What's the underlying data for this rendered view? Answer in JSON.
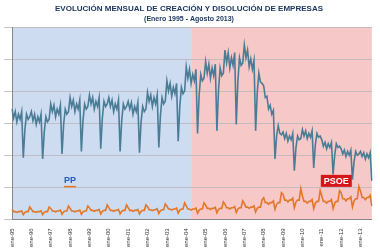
{
  "chart_data": {
    "type": "line",
    "title": "EVOLUCIÓN MENSUAL DE CREACIÓN Y DISOLUCIÓN DE EMPRESAS",
    "subtitle": "(Enero 1995 - Agosto 2013)",
    "categories": [
      "ene-95",
      null,
      null,
      null,
      null,
      null,
      null,
      null,
      null,
      null,
      null,
      null,
      "ene-96",
      null,
      null,
      null,
      null,
      null,
      null,
      null,
      null,
      null,
      null,
      null,
      "ene-97",
      null,
      null,
      null,
      null,
      null,
      null,
      null,
      null,
      null,
      null,
      null,
      "ene-98",
      null,
      null,
      null,
      null,
      null,
      null,
      null,
      null,
      null,
      null,
      null,
      "ene-99",
      null,
      null,
      null,
      null,
      null,
      null,
      null,
      null,
      null,
      null,
      null,
      "ene-00",
      null,
      null,
      null,
      null,
      null,
      null,
      null,
      null,
      null,
      null,
      null,
      "ene-01",
      null,
      null,
      null,
      null,
      null,
      null,
      null,
      null,
      null,
      null,
      null,
      "ene-02",
      null,
      null,
      null,
      null,
      null,
      null,
      null,
      null,
      null,
      null,
      null,
      "ene-03",
      null,
      null,
      null,
      null,
      null,
      null,
      null,
      null,
      null,
      null,
      null,
      "ene-04",
      null,
      null,
      null,
      null,
      null,
      null,
      null,
      null,
      null,
      null,
      null,
      "ene-05",
      null,
      null,
      null,
      null,
      null,
      null,
      null,
      null,
      null,
      null,
      null,
      "ene-06",
      null,
      null,
      null,
      null,
      null,
      null,
      null,
      null,
      null,
      null,
      null,
      "ene-07",
      null,
      null,
      null,
      null,
      null,
      null,
      null,
      null,
      null,
      null,
      null,
      "ene-08",
      null,
      null,
      null,
      null,
      null,
      null,
      null,
      null,
      null,
      null,
      null,
      "ene-09",
      null,
      null,
      null,
      null,
      null,
      null,
      null,
      null,
      null,
      null,
      null,
      "ene-10",
      null,
      null,
      null,
      null,
      null,
      null,
      null,
      null,
      null,
      null,
      null,
      "ene-11",
      null,
      null,
      null,
      null,
      null,
      null,
      null,
      null,
      null,
      null,
      null,
      "ene-12",
      null,
      null,
      null,
      null,
      null,
      null,
      null,
      null,
      null,
      null,
      null,
      "ene-13",
      null,
      null,
      null,
      null,
      null,
      null,
      null
    ],
    "series": [
      {
        "color": "#4a7c96",
        "values": [
          8600,
          7900,
          8400,
          7600,
          8200,
          7800,
          8400,
          4800,
          7000,
          8200,
          7800,
          8000,
          8400,
          7700,
          8200,
          7400,
          8000,
          7600,
          8200,
          4700,
          6800,
          8000,
          7600,
          7800,
          9000,
          8400,
          8900,
          8000,
          8600,
          8200,
          8900,
          5100,
          7400,
          8600,
          8200,
          8400,
          9500,
          8800,
          9300,
          8400,
          9000,
          8600,
          9300,
          5300,
          7700,
          9000,
          8600,
          8800,
          9700,
          9000,
          9500,
          8600,
          9200,
          8800,
          9500,
          5500,
          7900,
          9200,
          8800,
          9000,
          9500,
          8800,
          9300,
          8400,
          9000,
          8600,
          9300,
          5300,
          7700,
          9000,
          8600,
          8800,
          9200,
          8600,
          9100,
          8200,
          8800,
          8400,
          9100,
          5200,
          7600,
          8800,
          8400,
          8600,
          9900,
          9200,
          9700,
          8800,
          9500,
          9000,
          9700,
          5600,
          8100,
          9500,
          9000,
          9200,
          10800,
          10000,
          10600,
          9600,
          10300,
          9800,
          10600,
          6100,
          8800,
          10300,
          9800,
          10000,
          11900,
          11000,
          11700,
          10600,
          11300,
          10800,
          11700,
          6700,
          9700,
          11300,
          10800,
          11000,
          12300,
          11400,
          12100,
          11000,
          11800,
          11200,
          12100,
          6900,
          10100,
          11800,
          11200,
          11400,
          13200,
          12200,
          13000,
          11800,
          12600,
          12000,
          13000,
          7400,
          10800,
          12600,
          12000,
          12200,
          13600,
          12600,
          13200,
          11900,
          12500,
          11700,
          12400,
          6900,
          9900,
          11400,
          10700,
          10600,
          10400,
          9500,
          9600,
          8600,
          8900,
          8200,
          8500,
          4700,
          6500,
          7300,
          6700,
          6600,
          6800,
          6300,
          6700,
          6100,
          6500,
          6200,
          6700,
          3800,
          5600,
          6500,
          6200,
          6300,
          7000,
          6500,
          6900,
          6300,
          6700,
          6400,
          6900,
          4000,
          5800,
          6700,
          6400,
          6500,
          6200,
          5700,
          6000,
          5500,
          5900,
          5600,
          6000,
          3500,
          5000,
          5900,
          5600,
          5700,
          5500,
          5100,
          5400,
          4900,
          5300,
          5000,
          5400,
          3100,
          4500,
          5300,
          5000,
          5100,
          5300,
          4900,
          5200,
          4700,
          5100,
          4800,
          5200,
          3000
        ]
      },
      {
        "color": "#e2772a",
        "values": [
          780,
          600,
          600,
          540,
          600,
          600,
          660,
          360,
          540,
          600,
          600,
          960,
          780,
          600,
          600,
          540,
          600,
          600,
          660,
          360,
          540,
          600,
          600,
          960,
          850,
          650,
          650,
          590,
          650,
          650,
          720,
          390,
          590,
          650,
          650,
          1040,
          850,
          650,
          650,
          590,
          650,
          650,
          720,
          390,
          590,
          650,
          650,
          1040,
          910,
          700,
          700,
          630,
          700,
          700,
          770,
          420,
          630,
          700,
          700,
          1120,
          910,
          700,
          700,
          630,
          700,
          700,
          770,
          420,
          630,
          700,
          700,
          1120,
          910,
          700,
          700,
          630,
          700,
          700,
          770,
          420,
          630,
          700,
          700,
          1120,
          980,
          750,
          750,
          680,
          750,
          750,
          830,
          450,
          680,
          750,
          750,
          1200,
          1040,
          800,
          800,
          720,
          800,
          800,
          880,
          480,
          720,
          800,
          800,
          1280,
          1040,
          800,
          800,
          720,
          800,
          800,
          880,
          480,
          720,
          800,
          800,
          1280,
          1110,
          850,
          850,
          770,
          850,
          850,
          940,
          510,
          770,
          850,
          850,
          1360,
          1170,
          900,
          900,
          810,
          900,
          900,
          990,
          540,
          810,
          900,
          900,
          1440,
          1240,
          950,
          950,
          860,
          950,
          950,
          1050,
          570,
          860,
          950,
          950,
          1520,
          1690,
          1300,
          1300,
          1170,
          1300,
          1300,
          1430,
          780,
          1170,
          1300,
          1300,
          2080,
          1950,
          1500,
          1500,
          1350,
          1500,
          1500,
          1650,
          900,
          1350,
          1500,
          1500,
          2400,
          1820,
          1400,
          1400,
          1260,
          1400,
          1400,
          1540,
          840,
          1260,
          1400,
          1400,
          2240,
          1820,
          1400,
          1400,
          1260,
          1400,
          1400,
          1540,
          840,
          1260,
          1400,
          1400,
          2240,
          2080,
          1600,
          1600,
          1440,
          1600,
          1600,
          1760,
          960,
          1440,
          1600,
          1600,
          2560,
          2210,
          1700,
          1700,
          1530,
          1700,
          1700,
          1870,
          1020
        ]
      }
    ],
    "periods": [
      {
        "label": "PP",
        "from": 0,
        "to": 111,
        "color": "#cddcf0"
      },
      {
        "label": "PSOE",
        "from": 111,
        "to": 223,
        "color": "#f7c8c8"
      }
    ],
    "ylim": [
      0,
      15000
    ],
    "yticks": [
      0,
      2500,
      5000,
      7500,
      10000,
      12500,
      15000
    ],
    "grid": true,
    "tick_labels": "x"
  }
}
